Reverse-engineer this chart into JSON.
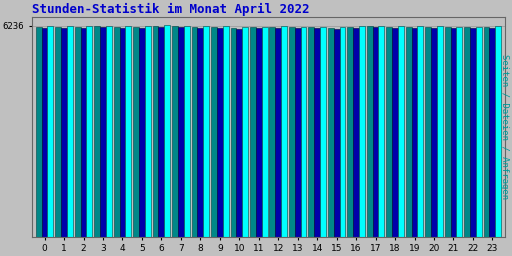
{
  "title": "Stunden-Statistik im Monat April 2022",
  "title_color": "#0000cc",
  "title_fontsize": 9,
  "ylabel": "Seiten / Dateien / Anfragen",
  "ylabel_color": "#009999",
  "ylabel_fontsize": 6.5,
  "background_color": "#c0c0c0",
  "plot_bg_color": "#c0c0c0",
  "hours": [
    0,
    1,
    2,
    3,
    4,
    5,
    6,
    7,
    8,
    9,
    10,
    11,
    12,
    13,
    14,
    15,
    16,
    17,
    18,
    19,
    20,
    21,
    22,
    23
  ],
  "ytick_label": "6236",
  "ytick_value": 6236,
  "ymin": 0,
  "ymax": 6500,
  "bar_colors": [
    "#00ffff",
    "#0000aa",
    "#008888"
  ],
  "bar_width": 0.3,
  "values_cyan": [
    6220,
    6225,
    6220,
    6242,
    6236,
    6236,
    6252,
    6246,
    6230,
    6230,
    6206,
    6212,
    6226,
    6216,
    6213,
    6211,
    6228,
    6242,
    6234,
    6230,
    6221,
    6219,
    6216,
    6223
  ],
  "values_blue": [
    6175,
    6182,
    6168,
    6198,
    6188,
    6183,
    6203,
    6197,
    6183,
    6180,
    6160,
    6164,
    6177,
    6167,
    6163,
    6159,
    6174,
    6192,
    6184,
    6177,
    6170,
    6167,
    6162,
    6172
  ],
  "values_teal": [
    6200,
    6205,
    6196,
    6224,
    6216,
    6213,
    6237,
    6231,
    6214,
    6211,
    6188,
    6193,
    6206,
    6196,
    6192,
    6188,
    6206,
    6222,
    6213,
    6207,
    6200,
    6196,
    6192,
    6202
  ]
}
